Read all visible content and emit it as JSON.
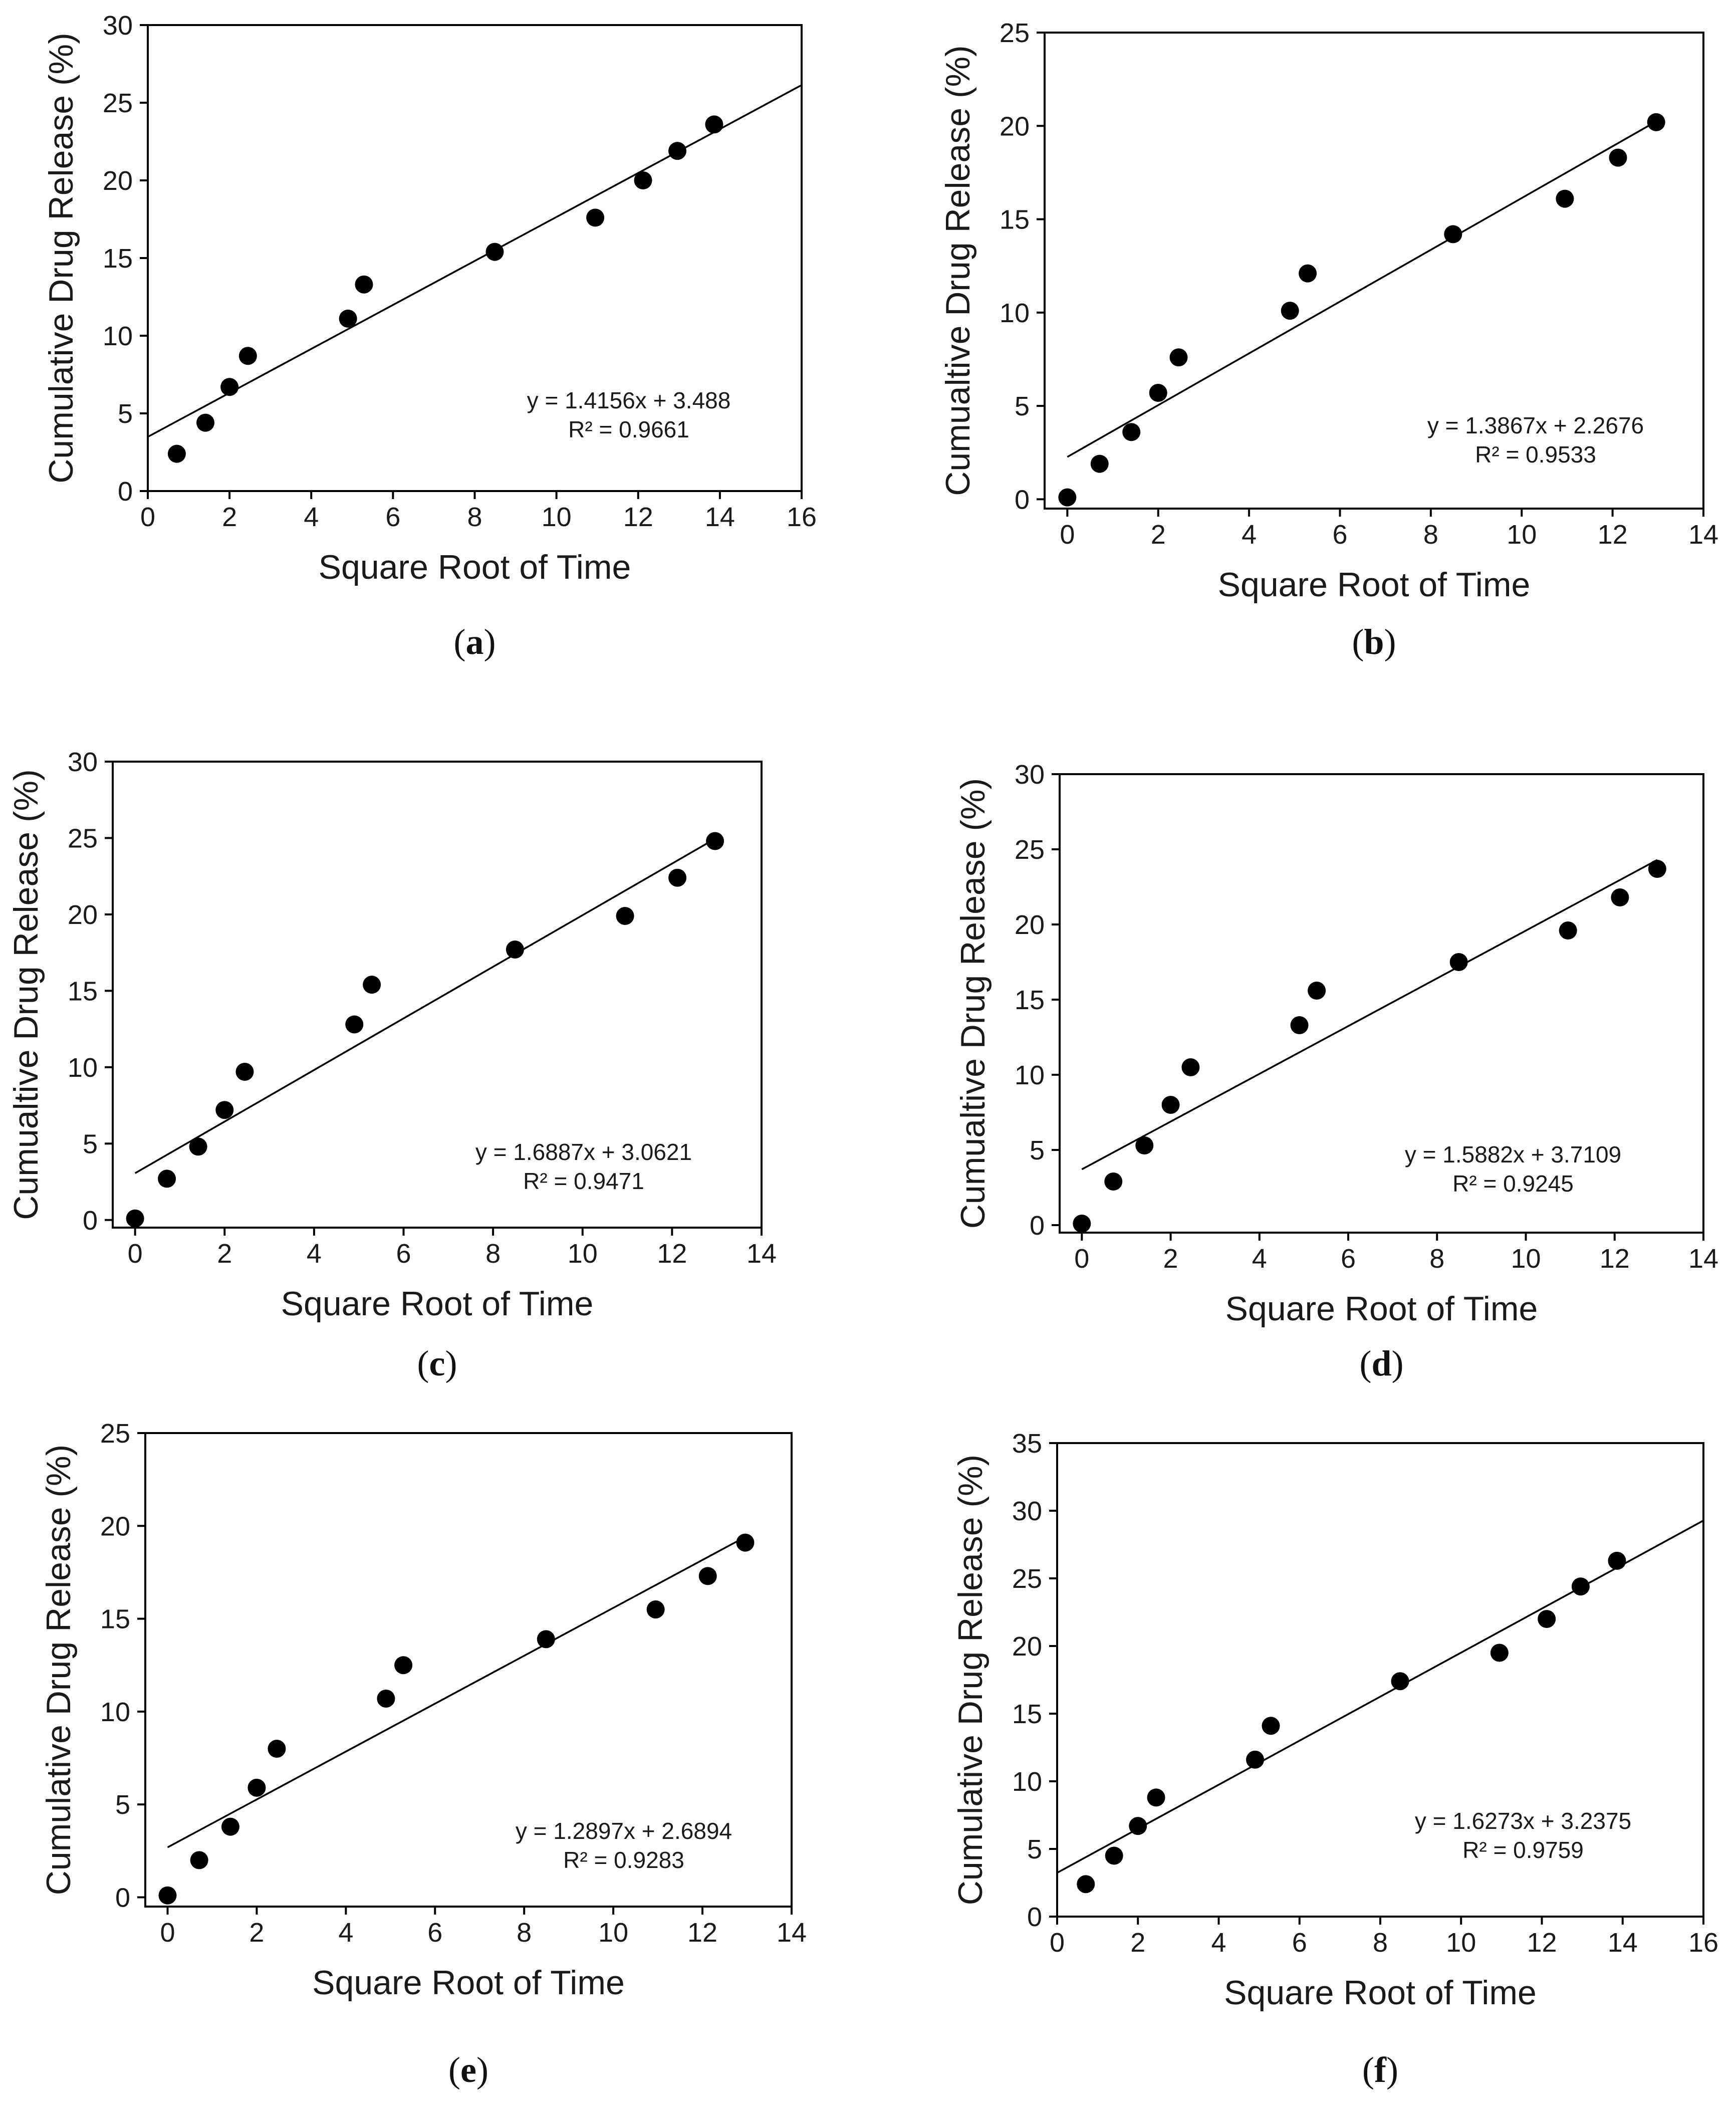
{
  "figure": {
    "colors": {
      "axis": "#000000",
      "marker": "#000000",
      "fit_line": "#000000",
      "background": "#ffffff"
    }
  },
  "chart_data": [
    {
      "type": "scatter",
      "panel": "a",
      "caption_letter": "a",
      "xlabel": "Square Root of Time",
      "ylabel": "Cumulative Drug Release  (%)",
      "xlim": [
        0,
        16
      ],
      "ylim": [
        0,
        30
      ],
      "xticks": [
        0,
        2,
        4,
        6,
        8,
        10,
        12,
        14,
        16
      ],
      "yticks": [
        0,
        5,
        10,
        15,
        20,
        25,
        30
      ],
      "x": [
        0.71,
        1.41,
        2.0,
        2.45,
        4.9,
        5.29,
        8.49,
        10.95,
        12.12,
        12.96,
        13.86
      ],
      "y": [
        2.4,
        4.4,
        6.7,
        8.7,
        11.1,
        13.3,
        15.4,
        17.6,
        20.0,
        21.9,
        23.6
      ],
      "fit": {
        "slope": 1.4156,
        "intercept": 3.488,
        "x_range": [
          0,
          16
        ]
      },
      "equation": "y = 1.4156x + 3.488",
      "r2": "R² = 0.9661",
      "grid": false
    },
    {
      "type": "scatter",
      "panel": "b",
      "caption_letter": "b",
      "xlabel": "Square Root of Time",
      "ylabel": "Cumualtive Drug Release (%)",
      "xlim": [
        -0.5,
        14
      ],
      "ylim": [
        -0.5,
        25
      ],
      "xticks": [
        0,
        2,
        4,
        6,
        8,
        10,
        12,
        14
      ],
      "yticks": [
        0,
        5,
        10,
        15,
        20,
        25
      ],
      "x": [
        0,
        0.71,
        1.41,
        2.0,
        2.45,
        4.9,
        5.29,
        8.49,
        10.95,
        12.12,
        12.96
      ],
      "y": [
        0.1,
        1.9,
        3.6,
        5.7,
        7.6,
        10.1,
        12.1,
        14.2,
        16.1,
        18.3,
        20.2
      ],
      "fit": {
        "slope": 1.3867,
        "intercept": 2.2676,
        "x_range": [
          0,
          12.96
        ]
      },
      "equation": "y = 1.3867x + 2.2676",
      "r2": "R² = 0.9533",
      "grid": false
    },
    {
      "type": "scatter",
      "panel": "c",
      "caption_letter": "c",
      "xlabel": "Square Root of Time",
      "ylabel": "Cumualtive Drug Release (%)",
      "xlim": [
        -0.5,
        14
      ],
      "ylim": [
        -0.5,
        30
      ],
      "xticks": [
        0,
        2,
        4,
        6,
        8,
        10,
        12,
        14
      ],
      "yticks": [
        0,
        5,
        10,
        15,
        20,
        25,
        30
      ],
      "x": [
        0,
        0.71,
        1.41,
        2.0,
        2.45,
        4.9,
        5.29,
        8.49,
        10.95,
        12.12,
        12.96
      ],
      "y": [
        0.1,
        2.7,
        4.8,
        7.2,
        9.7,
        12.8,
        15.4,
        17.7,
        19.9,
        22.4,
        24.8
      ],
      "fit": {
        "slope": 1.6887,
        "intercept": 3.0621,
        "x_range": [
          0,
          12.96
        ]
      },
      "equation": "y = 1.6887x + 3.0621",
      "r2": "R² = 0.9471",
      "grid": false
    },
    {
      "type": "scatter",
      "panel": "d",
      "caption_letter": "d",
      "xlabel": "Square Root of Time",
      "ylabel": "Cumualtive Drug Release (%)",
      "xlim": [
        -0.5,
        14
      ],
      "ylim": [
        -0.5,
        30
      ],
      "xticks": [
        0,
        2,
        4,
        6,
        8,
        10,
        12,
        14
      ],
      "yticks": [
        0,
        5,
        10,
        15,
        20,
        25,
        30
      ],
      "x": [
        0,
        0.71,
        1.41,
        2.0,
        2.45,
        4.9,
        5.29,
        8.49,
        10.95,
        12.12,
        12.96
      ],
      "y": [
        0.1,
        2.9,
        5.3,
        8.0,
        10.5,
        13.3,
        15.6,
        17.5,
        19.6,
        21.8,
        23.7
      ],
      "fit": {
        "slope": 1.5882,
        "intercept": 3.7109,
        "x_range": [
          0,
          12.96
        ]
      },
      "equation": "y = 1.5882x + 3.7109",
      "r2": "R² = 0.9245",
      "grid": false
    },
    {
      "type": "scatter",
      "panel": "e",
      "caption_letter": "e",
      "xlabel": "Square Root of Time",
      "ylabel": "Cumulative Drug Release  (%)",
      "xlim": [
        -0.5,
        14
      ],
      "ylim": [
        -0.5,
        25
      ],
      "xticks": [
        0,
        2,
        4,
        6,
        8,
        10,
        12,
        14
      ],
      "yticks": [
        0,
        5,
        10,
        15,
        20,
        25
      ],
      "x": [
        0,
        0.71,
        1.41,
        2.0,
        2.45,
        4.9,
        5.29,
        8.49,
        10.95,
        12.12,
        12.96
      ],
      "y": [
        0.1,
        2.0,
        3.8,
        5.9,
        8.0,
        10.7,
        12.5,
        13.9,
        15.5,
        17.3,
        19.1
      ],
      "fit": {
        "slope": 1.2897,
        "intercept": 2.6894,
        "x_range": [
          0,
          12.96
        ]
      },
      "equation": "y = 1.2897x + 2.6894",
      "r2": "R² = 0.9283",
      "grid": false
    },
    {
      "type": "scatter",
      "panel": "f",
      "caption_letter": "f",
      "xlabel": "Square Root of Time",
      "ylabel": "Cumulative Drug Release (%)",
      "xlim": [
        0,
        16
      ],
      "ylim": [
        0,
        35
      ],
      "xticks": [
        0,
        2,
        4,
        6,
        8,
        10,
        12,
        14,
        16
      ],
      "yticks": [
        0,
        5,
        10,
        15,
        20,
        25,
        30,
        35
      ],
      "x": [
        0.71,
        1.41,
        2.0,
        2.45,
        4.9,
        5.29,
        8.49,
        10.95,
        12.12,
        12.96,
        13.86
      ],
      "y": [
        2.4,
        4.5,
        6.7,
        8.8,
        11.6,
        14.1,
        17.4,
        19.5,
        22.0,
        24.4,
        26.3
      ],
      "fit": {
        "slope": 1.6273,
        "intercept": 3.2375,
        "x_range": [
          0,
          16
        ]
      },
      "equation": "y = 1.6273x + 3.2375",
      "r2": "R² = 0.9759",
      "grid": false
    }
  ]
}
